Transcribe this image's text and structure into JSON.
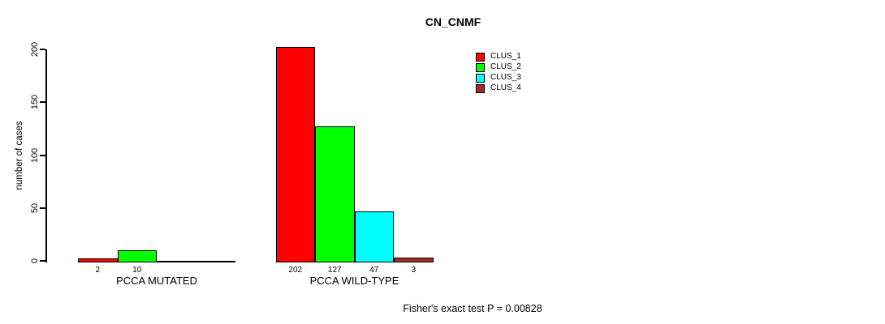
{
  "chart_data": {
    "type": "bar",
    "title": "CN_CNMF",
    "ylabel": "number of cases",
    "xlabel": "",
    "annotation": "Fisher's exact test P = 0.00828",
    "categories": [
      "PCCA MUTATED",
      "PCCA WILD-TYPE"
    ],
    "series": [
      {
        "name": "CLUS_1",
        "color": "#ff0000",
        "values": [
          2,
          202
        ]
      },
      {
        "name": "CLUS_2",
        "color": "#00ff00",
        "values": [
          10,
          127
        ]
      },
      {
        "name": "CLUS_3",
        "color": "#00ffff",
        "values": [
          0,
          47
        ]
      },
      {
        "name": "CLUS_4",
        "color": "#a52a2a",
        "values": [
          0,
          3
        ]
      }
    ],
    "ylim": [
      0,
      200
    ],
    "yticks": [
      0,
      50,
      100,
      150,
      200
    ],
    "grid": false,
    "legend": {
      "position": "top-right",
      "entries": [
        "CLUS_1",
        "CLUS_2",
        "CLUS_3",
        "CLUS_4"
      ]
    },
    "bar_value_labels": {
      "PCCA MUTATED": [
        2,
        10
      ],
      "PCCA WILD-TYPE": [
        202,
        127,
        47,
        3
      ]
    }
  },
  "colors": {
    "background": "#ffffff",
    "axis": "#000000",
    "text": "#000000",
    "bar_border": "#000000"
  }
}
